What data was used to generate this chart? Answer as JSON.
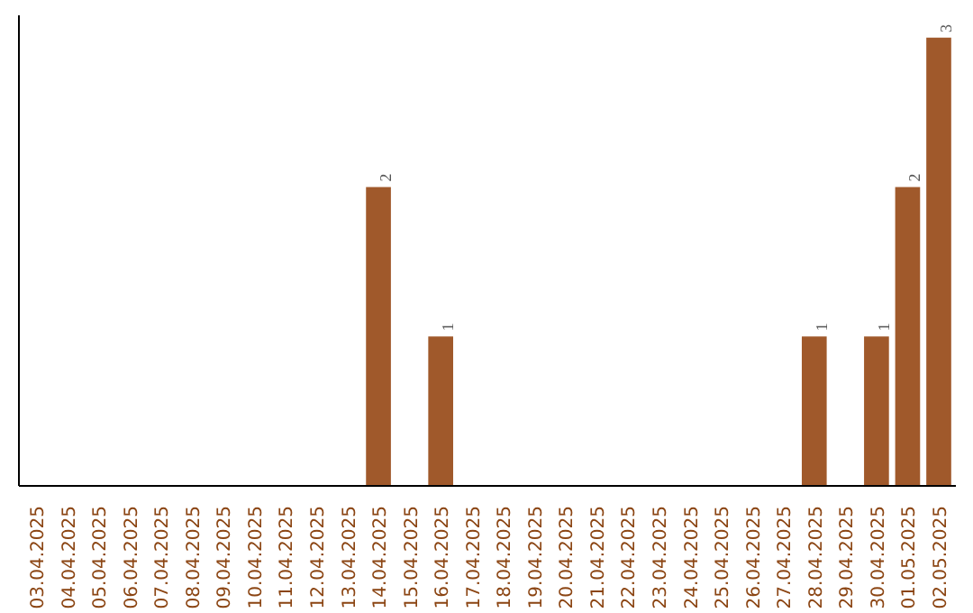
{
  "chart_data": {
    "type": "bar",
    "categories": [
      "03.04.2025",
      "04.04.2025",
      "05.04.2025",
      "06.04.2025",
      "07.04.2025",
      "08.04.2025",
      "09.04.2025",
      "10.04.2025",
      "11.04.2025",
      "12.04.2025",
      "13.04.2025",
      "14.04.2025",
      "15.04.2025",
      "16.04.2025",
      "17.04.2025",
      "18.04.2025",
      "19.04.2025",
      "20.04.2025",
      "21.04.2025",
      "22.04.2025",
      "23.04.2025",
      "24.04.2025",
      "25.04.2025",
      "26.04.2025",
      "27.04.2025",
      "28.04.2025",
      "29.04.2025",
      "30.04.2025",
      "01.05.2025",
      "02.05.2025"
    ],
    "values": [
      0,
      0,
      0,
      0,
      0,
      0,
      0,
      0,
      0,
      0,
      0,
      2,
      0,
      1,
      0,
      0,
      0,
      0,
      0,
      0,
      0,
      0,
      0,
      0,
      0,
      1,
      0,
      1,
      2,
      3
    ],
    "value_labels": [
      null,
      null,
      null,
      null,
      null,
      null,
      null,
      null,
      null,
      null,
      null,
      "2",
      null,
      "1",
      null,
      null,
      null,
      null,
      null,
      null,
      null,
      null,
      null,
      null,
      null,
      "1",
      null,
      "1",
      "2",
      "3"
    ],
    "color": "#a0592b",
    "ylim": [
      0,
      3.15
    ],
    "tick_labels": "x"
  }
}
